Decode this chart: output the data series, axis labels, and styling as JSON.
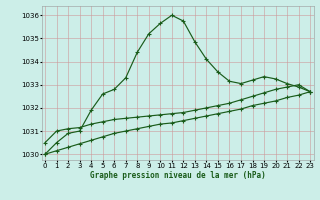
{
  "title": "Graphe pression niveau de la mer (hPa)",
  "bg_color": "#cceee8",
  "grid_color": "#cc9999",
  "line_color": "#1a5c1a",
  "line1_y": [
    1030.0,
    1030.5,
    1030.9,
    1031.0,
    1031.9,
    1032.6,
    1032.8,
    1033.3,
    1034.4,
    1035.2,
    1035.65,
    1036.0,
    1035.75,
    1034.85,
    1034.1,
    1033.55,
    1033.15,
    1033.05,
    1033.2,
    1033.35,
    1033.25,
    1033.05,
    1032.9,
    1032.7
  ],
  "line2_y": [
    1030.5,
    1031.0,
    1031.1,
    1031.15,
    1031.3,
    1031.4,
    1031.5,
    1031.55,
    1031.6,
    1031.65,
    1031.7,
    1031.75,
    1031.8,
    1031.9,
    1032.0,
    1032.1,
    1032.2,
    1032.35,
    1032.5,
    1032.65,
    1032.8,
    1032.9,
    1033.0,
    1032.7
  ],
  "line3_y": [
    1030.0,
    1030.15,
    1030.3,
    1030.45,
    1030.6,
    1030.75,
    1030.9,
    1031.0,
    1031.1,
    1031.2,
    1031.3,
    1031.35,
    1031.45,
    1031.55,
    1031.65,
    1031.75,
    1031.85,
    1031.95,
    1032.1,
    1032.2,
    1032.3,
    1032.45,
    1032.55,
    1032.7
  ],
  "x": [
    0,
    1,
    2,
    3,
    4,
    5,
    6,
    7,
    8,
    9,
    10,
    11,
    12,
    13,
    14,
    15,
    16,
    17,
    18,
    19,
    20,
    21,
    22,
    23
  ],
  "ylim": [
    1029.75,
    1036.4
  ],
  "xlim": [
    -0.3,
    23.3
  ],
  "yticks": [
    1030,
    1031,
    1032,
    1033,
    1034,
    1035,
    1036
  ],
  "xticks": [
    0,
    1,
    2,
    3,
    4,
    5,
    6,
    7,
    8,
    9,
    10,
    11,
    12,
    13,
    14,
    15,
    16,
    17,
    18,
    19,
    20,
    21,
    22,
    23
  ],
  "ylabel_fontsize": 5.0,
  "xlabel_fontsize": 5.5,
  "tick_fontsize": 5.0
}
